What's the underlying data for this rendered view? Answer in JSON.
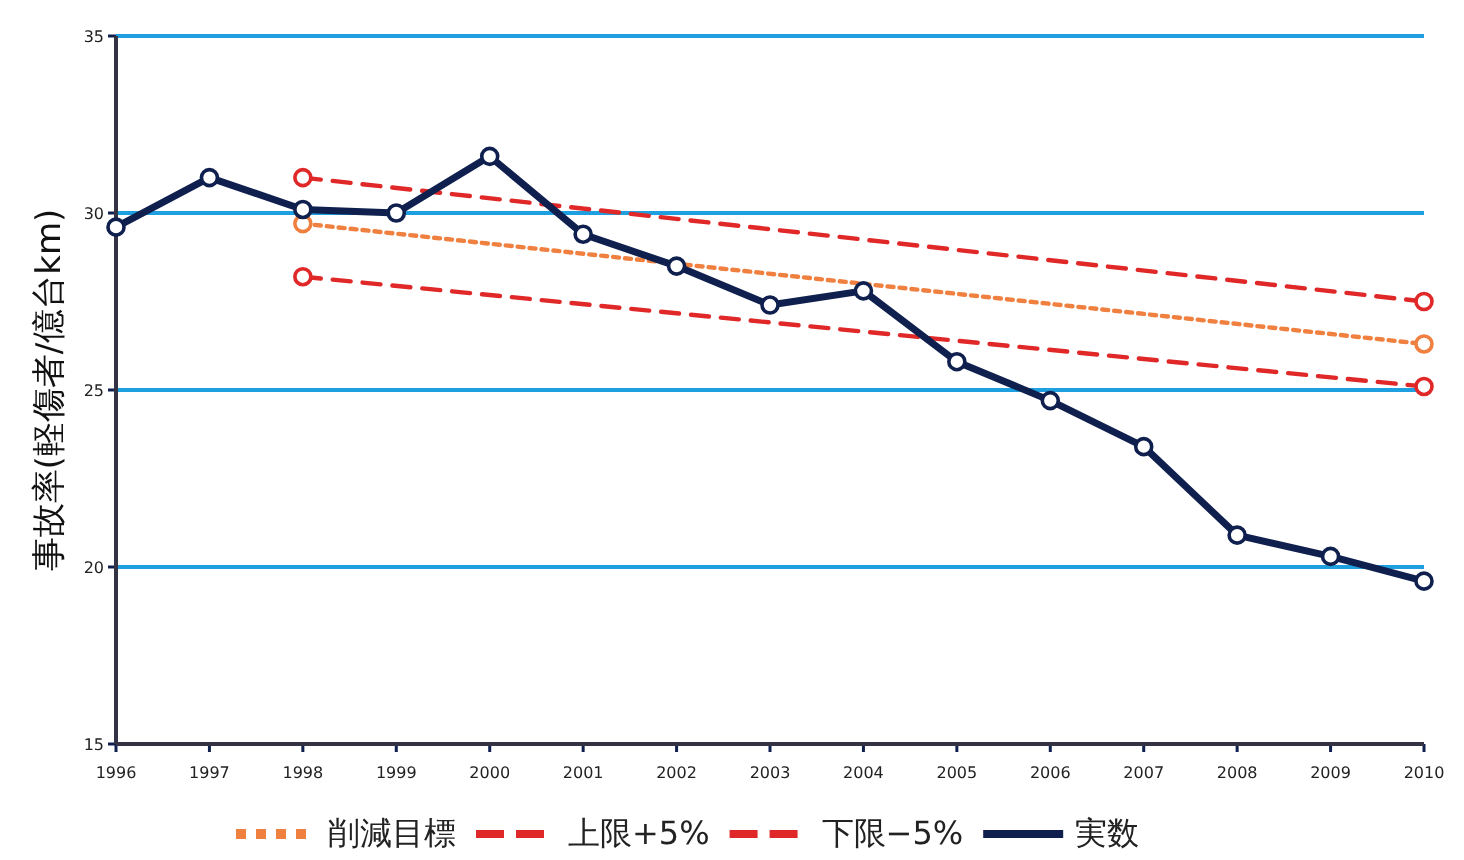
{
  "chart_data": {
    "type": "line",
    "ylabel": "事故率(軽傷者/億台km)",
    "xlim": [
      1996,
      2010
    ],
    "xticks": [
      1996,
      1997,
      1998,
      1999,
      2000,
      2001,
      2002,
      2003,
      2004,
      2005,
      2006,
      2007,
      2008,
      2009,
      2010
    ],
    "ylim": [
      15,
      35
    ],
    "yticks": [
      15,
      20,
      25,
      30,
      35
    ],
    "grid": "y",
    "legend": "bottom",
    "marker": "circle",
    "series": [
      {
        "name": "削減目標",
        "color": "#f08040",
        "line_style": "dotted",
        "x": [
          1998,
          2010
        ],
        "values": [
          29.7,
          26.3
        ]
      },
      {
        "name": "上限+5%",
        "color": "#e02828",
        "line_style": "dashed",
        "x": [
          1998,
          2010
        ],
        "values": [
          31.0,
          27.5
        ]
      },
      {
        "name": "下限−5%",
        "color": "#e02828",
        "line_style": "dashed",
        "x": [
          1998,
          2010
        ],
        "values": [
          28.2,
          25.1
        ]
      },
      {
        "name": "実数",
        "color": "#10204e",
        "line_style": "solid",
        "x": [
          1996,
          1997,
          1998,
          1999,
          2000,
          2001,
          2002,
          2003,
          2004,
          2005,
          2006,
          2007,
          2008,
          2009,
          2010
        ],
        "values": [
          29.6,
          31.0,
          30.1,
          30.0,
          31.6,
          29.4,
          28.5,
          27.4,
          27.8,
          25.8,
          24.7,
          23.4,
          20.9,
          20.3,
          19.6
        ]
      }
    ]
  }
}
